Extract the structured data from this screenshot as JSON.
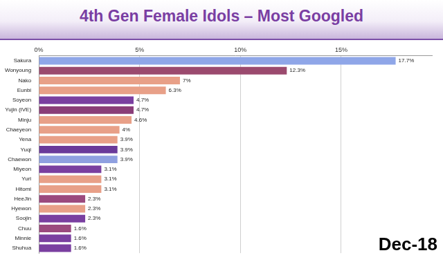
{
  "chart_data": {
    "type": "bar",
    "orientation": "horizontal",
    "title": "4th Gen Female Idols – Most Googled",
    "annotation": "Dec-18",
    "categories": [
      "Sakura",
      "Wonyoung",
      "Nako",
      "Eunbi",
      "Soyeon",
      "Yujin (IVE)",
      "Minju",
      "Chaeyeon",
      "Yena",
      "Yuqi",
      "Chaewon",
      "Miyeon",
      "Yuri",
      "Hitomi",
      "HeeJin",
      "Hyewon",
      "Soojin",
      "Chuu",
      "Minnie",
      "Shuhua"
    ],
    "values": [
      17.7,
      12.3,
      7,
      6.3,
      4.7,
      4.7,
      4.6,
      4,
      3.9,
      3.9,
      3.9,
      3.1,
      3.1,
      3.1,
      2.3,
      2.3,
      2.3,
      1.6,
      1.6,
      1.6
    ],
    "value_labels": [
      "17.7%",
      "12.3%",
      "7%",
      "6.3%",
      "4.7%",
      "4.7%",
      "4.6%",
      "4%",
      "3.9%",
      "3.9%",
      "3.9%",
      "3.1%",
      "3.1%",
      "3.1%",
      "2.3%",
      "2.3%",
      "2.3%",
      "1.6%",
      "1.6%",
      "1.6%"
    ],
    "colors": [
      "#8fa6e8",
      "#9b4a6e",
      "#e8a088",
      "#e8a088",
      "#7a3fa0",
      "#8a3d78",
      "#e8a088",
      "#e8a088",
      "#e8a088",
      "#6a3a9a",
      "#8fa0e0",
      "#7a3fa0",
      "#e8a088",
      "#e8a088",
      "#9b4a7e",
      "#e8a088",
      "#7a3fa0",
      "#9b4a7e",
      "#7a3fa0",
      "#7a3fa0"
    ],
    "xlim": [
      0,
      19.5
    ],
    "xticks": [
      {
        "value": 0,
        "label": "0%"
      },
      {
        "value": 5,
        "label": "5%"
      },
      {
        "value": 10,
        "label": "10%"
      },
      {
        "value": 15,
        "label": "15%"
      }
    ],
    "grid": true,
    "data_labels": true
  }
}
